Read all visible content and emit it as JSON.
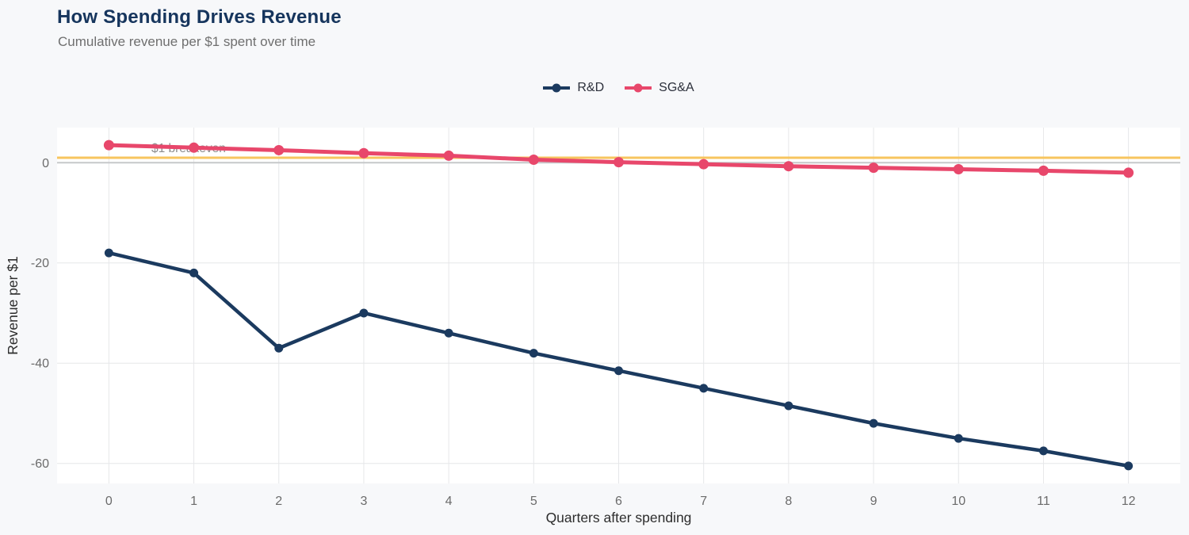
{
  "header": {
    "title": "How Spending Drives Revenue",
    "subtitle": "Cumulative revenue per $1 spent over time"
  },
  "chart_data": {
    "type": "line",
    "x": [
      0,
      1,
      2,
      3,
      4,
      5,
      6,
      7,
      8,
      9,
      10,
      11,
      12
    ],
    "series": [
      {
        "name": "R&D",
        "color": "#1b3a5f",
        "line_width": 4.5,
        "marker_radius": 5.5,
        "values": [
          -18,
          -22,
          -37,
          -30,
          -34,
          -38,
          -41.5,
          -45,
          -48.5,
          -52,
          -55,
          -57.5,
          -60.5
        ]
      },
      {
        "name": "SG&A",
        "color": "#e8476b",
        "line_width": 5,
        "marker_radius": 6.5,
        "values": [
          3.5,
          3.0,
          2.5,
          1.9,
          1.4,
          0.6,
          0.1,
          -0.3,
          -0.7,
          -1.0,
          -1.3,
          -1.6,
          -2.0
        ]
      }
    ],
    "annotation": {
      "label": "$1 breakeven",
      "value": 1,
      "line_color": "#f7c55f",
      "text_color": "#8c8c8c"
    },
    "xlabel": "Quarters after spending",
    "ylabel": "Revenue per $1",
    "xticks": [
      0,
      1,
      2,
      3,
      4,
      5,
      6,
      7,
      8,
      9,
      10,
      11,
      12
    ],
    "yticks": [
      0,
      -20,
      -40,
      -60
    ],
    "xlim": [
      -0.61,
      12.61
    ],
    "ylim": [
      -64,
      7
    ],
    "grid": true,
    "zero_line": true,
    "legend_position": "top-center"
  },
  "colors": {
    "background": "#f7f8fa",
    "plot_background": "#ffffff",
    "grid": "#e6e7e9",
    "zero_line": "#c6c8ca",
    "title": "#16355d",
    "subtitle": "#6f6f6f",
    "tick_label": "#6b6b6b",
    "axis_title": "#2d2d2d",
    "legend_text": "#2b2f3a"
  }
}
